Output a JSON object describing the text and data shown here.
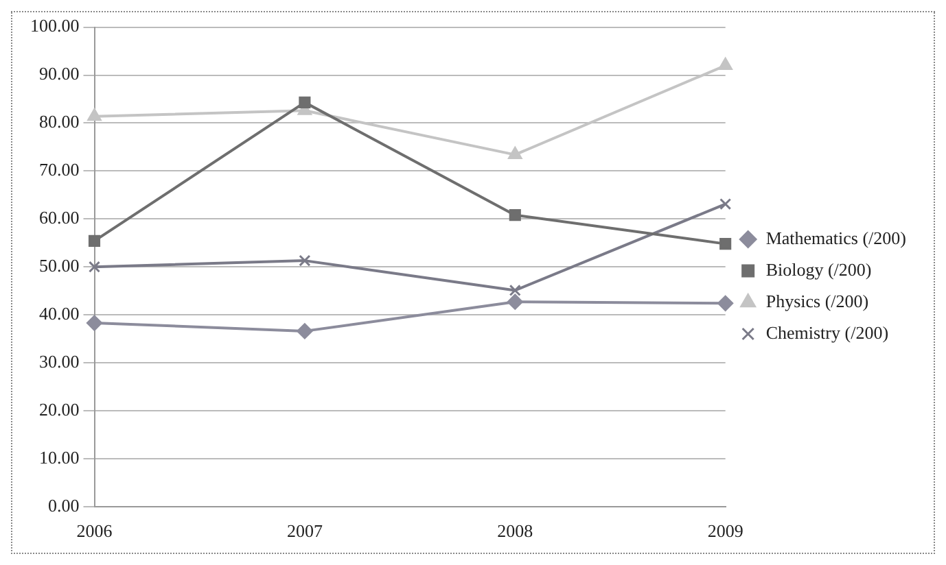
{
  "chart_data": {
    "type": "line",
    "categories": [
      "2006",
      "2007",
      "2008",
      "2009"
    ],
    "series": [
      {
        "name": "Mathematics (/200)",
        "color": "#8c8c9c",
        "marker": "diamond",
        "values": [
          38.3,
          36.6,
          42.7,
          42.4
        ]
      },
      {
        "name": "Biology (/200)",
        "color": "#6e6e6e",
        "marker": "square",
        "values": [
          55.4,
          84.3,
          60.8,
          54.8
        ]
      },
      {
        "name": "Physics (/200)",
        "color": "#c4c4c4",
        "marker": "triangle",
        "values": [
          81.4,
          82.6,
          73.4,
          92.0
        ]
      },
      {
        "name": "Chemistry (/200)",
        "color": "#7a7a88",
        "marker": "cross",
        "values": [
          50.0,
          51.3,
          45.1,
          63.1
        ]
      }
    ],
    "ylim": [
      0,
      100
    ],
    "yticks": [
      {
        "value": 0,
        "label": "0.00"
      },
      {
        "value": 10,
        "label": "10.00"
      },
      {
        "value": 20,
        "label": "20.00"
      },
      {
        "value": 30,
        "label": "30.00"
      },
      {
        "value": 40,
        "label": "40.00"
      },
      {
        "value": 50,
        "label": "50.00"
      },
      {
        "value": 60,
        "label": "60.00"
      },
      {
        "value": 70,
        "label": "70.00"
      },
      {
        "value": 80,
        "label": "80.00"
      },
      {
        "value": 90,
        "label": "90.00"
      },
      {
        "value": 100,
        "label": "100.00"
      }
    ],
    "grid": "y",
    "legend": "right"
  }
}
